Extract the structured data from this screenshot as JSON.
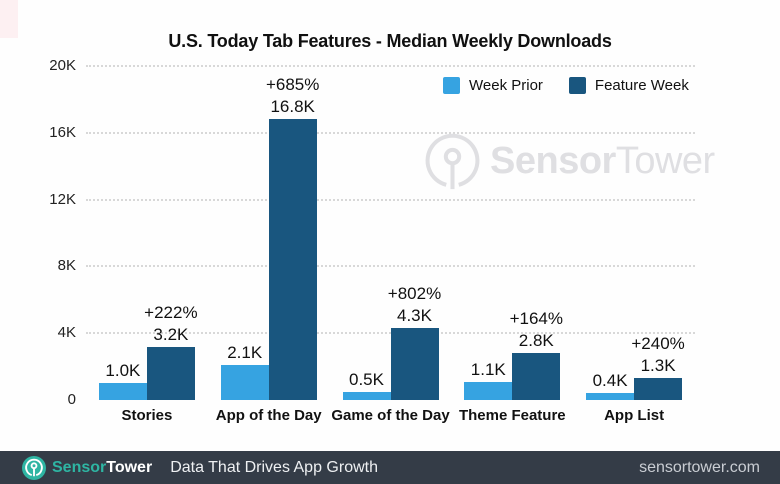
{
  "chart_data": {
    "type": "bar",
    "title": "U.S. Today Tab Features - Median Weekly Downloads",
    "categories": [
      "Stories",
      "App of the Day",
      "Game of the Day",
      "Theme Feature",
      "App List"
    ],
    "series": [
      {
        "name": "Week Prior",
        "color": "#36a3e1",
        "values": [
          1000,
          2100,
          500,
          1100,
          400
        ],
        "value_labels": [
          "1.0K",
          "2.1K",
          "0.5K",
          "1.1K",
          "0.4K"
        ]
      },
      {
        "name": "Feature Week",
        "color": "#19567f",
        "values": [
          3200,
          16800,
          4300,
          2800,
          1300
        ],
        "value_labels": [
          "3.2K",
          "16.8K",
          "4.3K",
          "2.8K",
          "1.3K"
        ]
      }
    ],
    "pct_labels": [
      "+222%",
      "+685%",
      "+802%",
      "+164%",
      "+240%"
    ],
    "y_ticks": [
      {
        "label": "20K",
        "value": 20000
      },
      {
        "label": "16K",
        "value": 16000
      },
      {
        "label": "12K",
        "value": 12000
      },
      {
        "label": "8K",
        "value": 8000
      },
      {
        "label": "4K",
        "value": 4000
      },
      {
        "label": "0",
        "value": 0
      }
    ],
    "ylim": [
      0,
      20000
    ],
    "grid": "horizontal-dotted",
    "grid_color": "#d8d8d8",
    "legend_position": "top-right"
  },
  "watermark": {
    "brand_bold": "Sensor",
    "brand_light": "Tower",
    "color": "#dfdfe2"
  },
  "footer": {
    "brand_bold": "Sensor",
    "brand_light": "Tower",
    "tagline": "Data That Drives App Growth",
    "url": "sensortower.com",
    "bg": "#343c47",
    "accent": "#2eb5a3"
  }
}
